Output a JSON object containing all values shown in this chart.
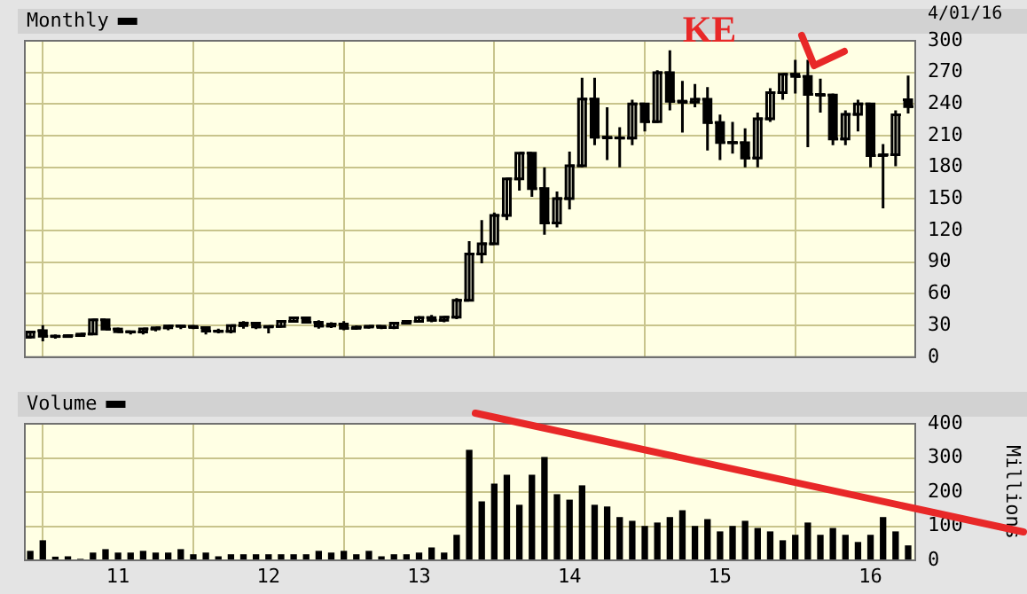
{
  "chart_data": [
    {
      "type": "candlestick",
      "legend": "top left",
      "grid": true,
      "tick_labels": "y",
      "annotations": [
        "KE",
        "4/01/16"
      ],
      "x": [
        "2010-06",
        "2010-07",
        "2010-08",
        "2010-09",
        "2010-10",
        "2010-11",
        "2010-12",
        "2011-01",
        "2011-02",
        "2011-03",
        "2011-04",
        "2011-05",
        "2011-06",
        "2011-07",
        "2011-08",
        "2011-09",
        "2011-10",
        "2011-11",
        "2011-12",
        "2012-01",
        "2012-02",
        "2012-03",
        "2012-04",
        "2012-05",
        "2012-06",
        "2012-07",
        "2012-08",
        "2012-09",
        "2012-10",
        "2012-11",
        "2012-12",
        "2013-01",
        "2013-02",
        "2013-03",
        "2013-04",
        "2013-05",
        "2013-06",
        "2013-07",
        "2013-08",
        "2013-09",
        "2013-10",
        "2013-11",
        "2013-12",
        "2014-01",
        "2014-02",
        "2014-03",
        "2014-04",
        "2014-05",
        "2014-06",
        "2014-07",
        "2014-08",
        "2014-09",
        "2014-10",
        "2014-11",
        "2014-12",
        "2015-01",
        "2015-02",
        "2015-03",
        "2015-04",
        "2015-05",
        "2015-06",
        "2015-07",
        "2015-08",
        "2015-09",
        "2015-10",
        "2015-11",
        "2015-12",
        "2016-01",
        "2016-02",
        "2016-03",
        "2016-04"
      ],
      "series": [
        {
          "name": "Monthly",
          "color": "#000000",
          "ohlc": [
            [
              19,
              25,
              17.5,
              23.9
            ],
            [
              25,
              30.4,
              15,
              19.9
            ],
            [
              19.9,
              21.5,
              17.5,
              19.5
            ],
            [
              19.5,
              21.7,
              19.2,
              20.4
            ],
            [
              20.4,
              21.9,
              20.3,
              21.8
            ],
            [
              21.8,
              36.4,
              21.5,
              35.3
            ],
            [
              35.3,
              35.9,
              26.3,
              26.6
            ],
            [
              26.6,
              28,
              23,
              24.1
            ],
            [
              24.1,
              25,
              21.5,
              23.9
            ],
            [
              23.9,
              27,
              21.5,
              26.7
            ],
            [
              26.7,
              28.5,
              24.5,
              27.8
            ],
            [
              27.8,
              30,
              25.5,
              29.6
            ],
            [
              29.6,
              30.5,
              26.5,
              29.1
            ],
            [
              29.1,
              30.5,
              26.5,
              28.1
            ],
            [
              28.1,
              28.5,
              21.5,
              24.7
            ],
            [
              24.7,
              27,
              22.5,
              24.4
            ],
            [
              24.4,
              31,
              22.5,
              29.9
            ],
            [
              29.9,
              34,
              27,
              32.3
            ],
            [
              32.3,
              33,
              26.5,
              28.6
            ],
            [
              28.6,
              29.5,
              22.5,
              29.1
            ],
            [
              29.1,
              35,
              28,
              33.8
            ],
            [
              33.8,
              38,
              33,
              37.2
            ],
            [
              37.2,
              38,
              32,
              33.1
            ],
            [
              33.1,
              35,
              27,
              29.5
            ],
            [
              29.5,
              33,
              27.5,
              31.3
            ],
            [
              31.3,
              34,
              25.5,
              27.3
            ],
            [
              27.3,
              30,
              26,
              28.5
            ],
            [
              28.5,
              30,
              27,
              29.3
            ],
            [
              29.3,
              30,
              26.5,
              28.1
            ],
            [
              28.1,
              33,
              26.5,
              32.1
            ],
            [
              32.1,
              35,
              31.5,
              33.9
            ],
            [
              33.9,
              39,
              33,
              37.5
            ],
            [
              37.5,
              40,
              33,
              34.9
            ],
            [
              34.9,
              39,
              33,
              37.9
            ],
            [
              37.9,
              56,
              36,
              53.9
            ],
            [
              53.9,
              110,
              53,
              97.8
            ],
            [
              97.8,
              130,
              89,
              107.4
            ],
            [
              107.4,
              137,
              107,
              134.3
            ],
            [
              134.3,
              170,
              130,
              169
            ],
            [
              169,
              194,
              158,
              193.4
            ],
            [
              193.4,
              194,
              152,
              159.9
            ],
            [
              159.9,
              180,
              116,
              127.3
            ],
            [
              127.3,
              157,
              123,
              150.4
            ],
            [
              150.4,
              195,
              140,
              181.4
            ],
            [
              181.4,
              265,
              180,
              244.8
            ],
            [
              244.8,
              265,
              201,
              208.5
            ],
            [
              208.5,
              237,
              187,
              207.9
            ],
            [
              207.9,
              218,
              180,
              207.8
            ],
            [
              207.8,
              244,
              201,
              240.1
            ],
            [
              240.1,
              241,
              214,
              223.3
            ],
            [
              223.3,
              272,
              222,
              269.7
            ],
            [
              269.7,
              291,
              234,
              242.7
            ],
            [
              242.7,
              262,
              213,
              241.7
            ],
            [
              241.7,
              259,
              237,
              244.5
            ],
            [
              244.5,
              256,
              196,
              222.4
            ],
            [
              222.4,
              230,
              187,
              203.6
            ],
            [
              203.6,
              223,
              193,
              203.3
            ],
            [
              203.3,
              217,
              180,
              188.8
            ],
            [
              188.8,
              232,
              180,
              226
            ],
            [
              226,
              255,
              223,
              250.8
            ],
            [
              250.8,
              269,
              244,
              268.3
            ],
            [
              268.3,
              282,
              250,
              266.2
            ],
            [
              266.2,
              282,
              199,
              249.1
            ],
            [
              249.1,
              264,
              232,
              248.4
            ],
            [
              248.4,
              250,
              201,
              206.9
            ],
            [
              206.9,
              234,
              201,
              230.3
            ],
            [
              230.3,
              244,
              214,
              240
            ],
            [
              240,
              241,
              180,
              191.2
            ],
            [
              191.2,
              202,
              141,
              191.9
            ],
            [
              191.9,
              234,
              181,
              229.8
            ],
            [
              244,
              267,
              231,
              237.6
            ]
          ]
        }
      ],
      "xlim": [
        "2010-05-18",
        "2016-04-18"
      ],
      "xticks": [
        {
          "value": "2011-01",
          "label": null
        },
        {
          "value": "2012-01",
          "label": null
        },
        {
          "value": "2013-01",
          "label": null
        },
        {
          "value": "2014-01",
          "label": null
        },
        {
          "value": "2015-01",
          "label": null
        },
        {
          "value": "2016-01",
          "label": null
        }
      ],
      "ylim": [
        0,
        300
      ],
      "yticks": [
        0,
        30,
        60,
        90,
        120,
        150,
        180,
        210,
        240,
        270,
        300
      ]
    },
    {
      "type": "bar",
      "legend": "top left",
      "grid": true,
      "ylabel": "Millions",
      "x": [
        "2010-06",
        "2010-07",
        "2010-08",
        "2010-09",
        "2010-10",
        "2010-11",
        "2010-12",
        "2011-01",
        "2011-02",
        "2011-03",
        "2011-04",
        "2011-05",
        "2011-06",
        "2011-07",
        "2011-08",
        "2011-09",
        "2011-10",
        "2011-11",
        "2011-12",
        "2012-01",
        "2012-02",
        "2012-03",
        "2012-04",
        "2012-05",
        "2012-06",
        "2012-07",
        "2012-08",
        "2012-09",
        "2012-10",
        "2012-11",
        "2012-12",
        "2013-01",
        "2013-02",
        "2013-03",
        "2013-04",
        "2013-05",
        "2013-06",
        "2013-07",
        "2013-08",
        "2013-09",
        "2013-10",
        "2013-11",
        "2013-12",
        "2014-01",
        "2014-02",
        "2014-03",
        "2014-04",
        "2014-05",
        "2014-06",
        "2014-07",
        "2014-08",
        "2014-09",
        "2014-10",
        "2014-11",
        "2014-12",
        "2015-01",
        "2015-02",
        "2015-03",
        "2015-04",
        "2015-05",
        "2015-06",
        "2015-07",
        "2015-08",
        "2015-09",
        "2015-10",
        "2015-11",
        "2015-12",
        "2016-01",
        "2016-02",
        "2016-03",
        "2016-04"
      ],
      "series": [
        {
          "name": "Volume",
          "color": "#000000",
          "values": [
            26,
            57,
            9,
            10,
            2,
            21,
            31,
            21,
            21,
            26,
            21,
            21,
            31,
            16,
            21,
            10,
            16,
            16,
            16,
            16,
            16,
            16,
            16,
            26,
            21,
            26,
            16,
            26,
            10,
            16,
            16,
            21,
            36,
            21,
            73,
            322,
            171,
            223,
            249,
            161,
            249,
            301,
            192,
            176,
            218,
            161,
            156,
            125,
            114,
            99,
            109,
            125,
            145,
            99,
            119,
            83,
            99,
            114,
            93,
            83,
            57,
            73,
            109,
            73,
            93,
            73,
            52,
            73,
            125,
            83,
            42
          ]
        }
      ],
      "xlim": [
        "2010-05-18",
        "2016-04-18"
      ],
      "xticks": [
        {
          "value": "2011-01",
          "label": "11"
        },
        {
          "value": "2012-01",
          "label": "12"
        },
        {
          "value": "2013-01",
          "label": "13"
        },
        {
          "value": "2014-01",
          "label": "14"
        },
        {
          "value": "2015-01",
          "label": "15"
        },
        {
          "value": "2016-01",
          "label": "16"
        }
      ],
      "ylim": [
        0,
        400
      ],
      "yticks": [
        0,
        100,
        200,
        300,
        400
      ]
    }
  ]
}
